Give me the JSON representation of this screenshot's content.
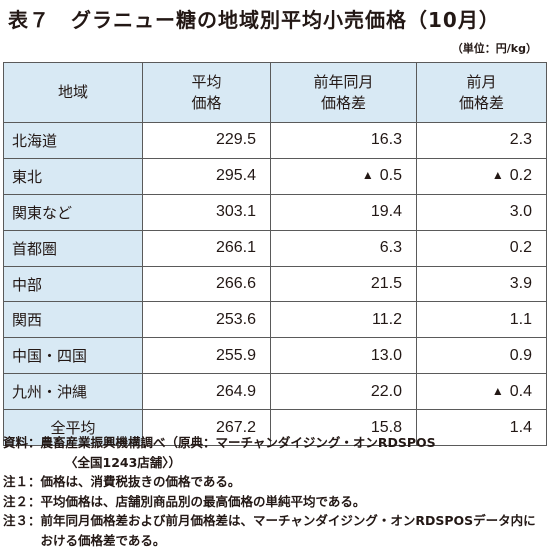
{
  "title": "表７　グラニュー糖の地域別平均小売価格（10月）",
  "unit": "（単位：円/kg）",
  "table": {
    "headers": [
      "地域",
      "平均\n価格",
      "前年同月\n価格差",
      "前月\n価格差"
    ],
    "rows": [
      {
        "region": "北海道",
        "avg": "229.5",
        "yoy": "16.3",
        "yoy_neg": false,
        "mom": "2.3",
        "mom_neg": false
      },
      {
        "region": "東北",
        "avg": "295.4",
        "yoy": "0.5",
        "yoy_neg": true,
        "mom": "0.2",
        "mom_neg": true
      },
      {
        "region": "関東など",
        "avg": "303.1",
        "yoy": "19.4",
        "yoy_neg": false,
        "mom": "3.0",
        "mom_neg": false
      },
      {
        "region": "首都圏",
        "avg": "266.1",
        "yoy": "6.3",
        "yoy_neg": false,
        "mom": "0.2",
        "mom_neg": false
      },
      {
        "region": "中部",
        "avg": "266.6",
        "yoy": "21.5",
        "yoy_neg": false,
        "mom": "3.9",
        "mom_neg": false
      },
      {
        "region": "関西",
        "avg": "253.6",
        "yoy": "11.2",
        "yoy_neg": false,
        "mom": "1.1",
        "mom_neg": false
      },
      {
        "region": "中国・四国",
        "avg": "255.9",
        "yoy": "13.0",
        "yoy_neg": false,
        "mom": "0.9",
        "mom_neg": false
      },
      {
        "region": "九州・沖縄",
        "avg": "264.9",
        "yoy": "22.0",
        "yoy_neg": false,
        "mom": "0.4",
        "mom_neg": true
      },
      {
        "region": "全平均",
        "avg": "267.2",
        "yoy": "15.8",
        "yoy_neg": false,
        "mom": "1.4",
        "mom_neg": false,
        "is_total": true
      }
    ],
    "negative_marker": "▲"
  },
  "notes": {
    "source_label": "資料：",
    "source_text": "農畜産業振興機構調べ（原典：マーチャンダイジング・オンRDSPOS",
    "source_text2": "〈全国1243店舗〉）",
    "note1_label": "注１：",
    "note1_text": "価格は、消費税抜きの価格である。",
    "note2_label": "注２：",
    "note2_text": "平均価格は、店舗別商品別の最高価格の単純平均である。",
    "note3_label": "注３：",
    "note3_text": "前年同月価格差および前月価格差は、マーチャンダイジング・オンRDSPOSデータ内における価格差である。"
  },
  "colors": {
    "header_bg": "#d8e9f4",
    "border": "#5a5a5a",
    "text": "#231815"
  }
}
